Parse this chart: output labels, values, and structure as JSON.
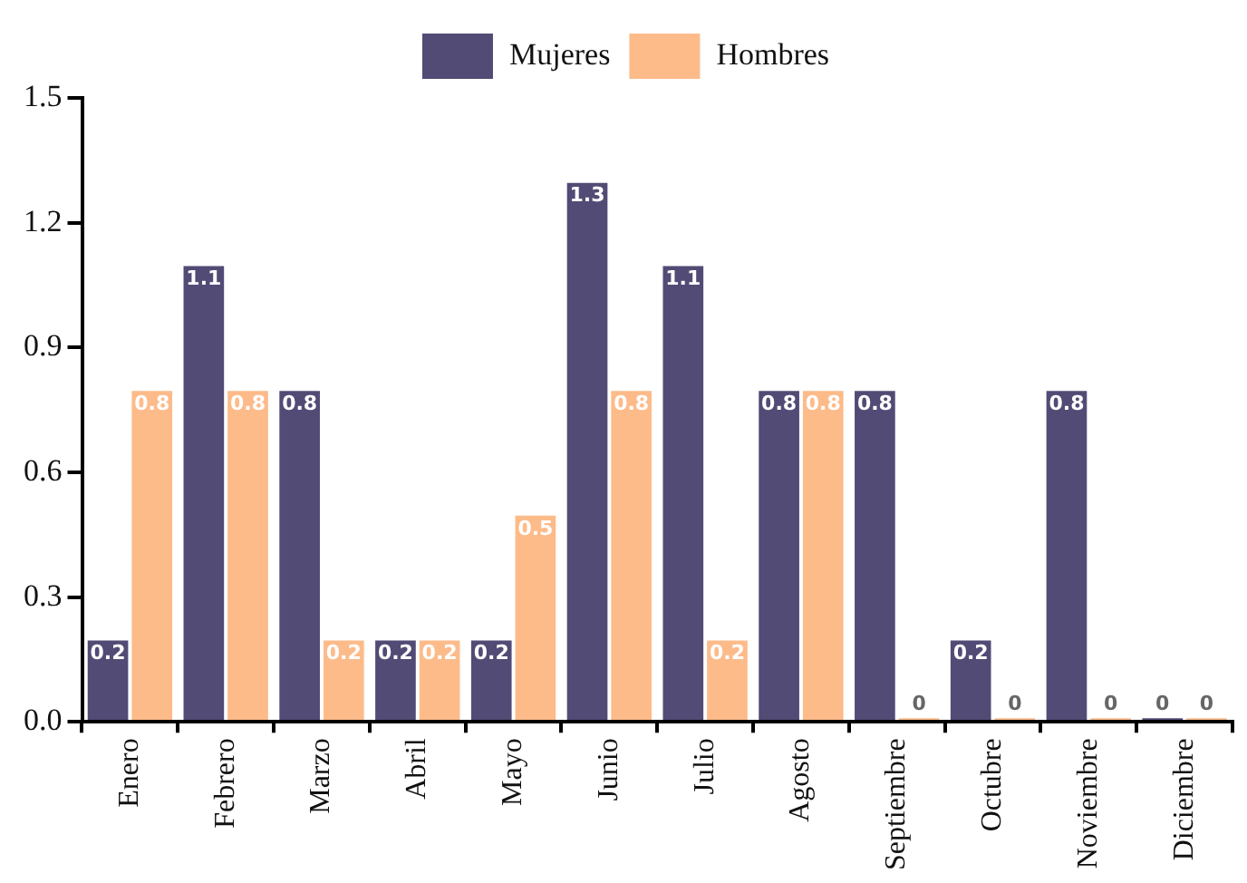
{
  "chart_data": {
    "type": "bar",
    "categories": [
      "Enero",
      "Febrero",
      "Marzo",
      "Abril",
      "Mayo",
      "Junio",
      "Julio",
      "Agosto",
      "Septiembre",
      "Octubre",
      "Noviembre",
      "Diciembre"
    ],
    "series": [
      {
        "name": "Mujeres",
        "color": "#524b75",
        "values": [
          0.2,
          1.1,
          0.8,
          0.2,
          0.2,
          1.3,
          1.1,
          0.8,
          0.8,
          0.2,
          0.8,
          0
        ]
      },
      {
        "name": "Hombres",
        "color": "#fdbb8a",
        "values": [
          0.8,
          0.8,
          0.2,
          0.2,
          0.5,
          0.8,
          0.2,
          0.8,
          0,
          0,
          0,
          0
        ]
      }
    ],
    "ylim": [
      0,
      1.5
    ],
    "yticks": [
      {
        "value": 0,
        "label": "0.0"
      },
      0.3,
      0.6,
      0.9,
      1.2,
      1.5
    ],
    "grid": false,
    "legend": "top",
    "data_labels": true
  }
}
